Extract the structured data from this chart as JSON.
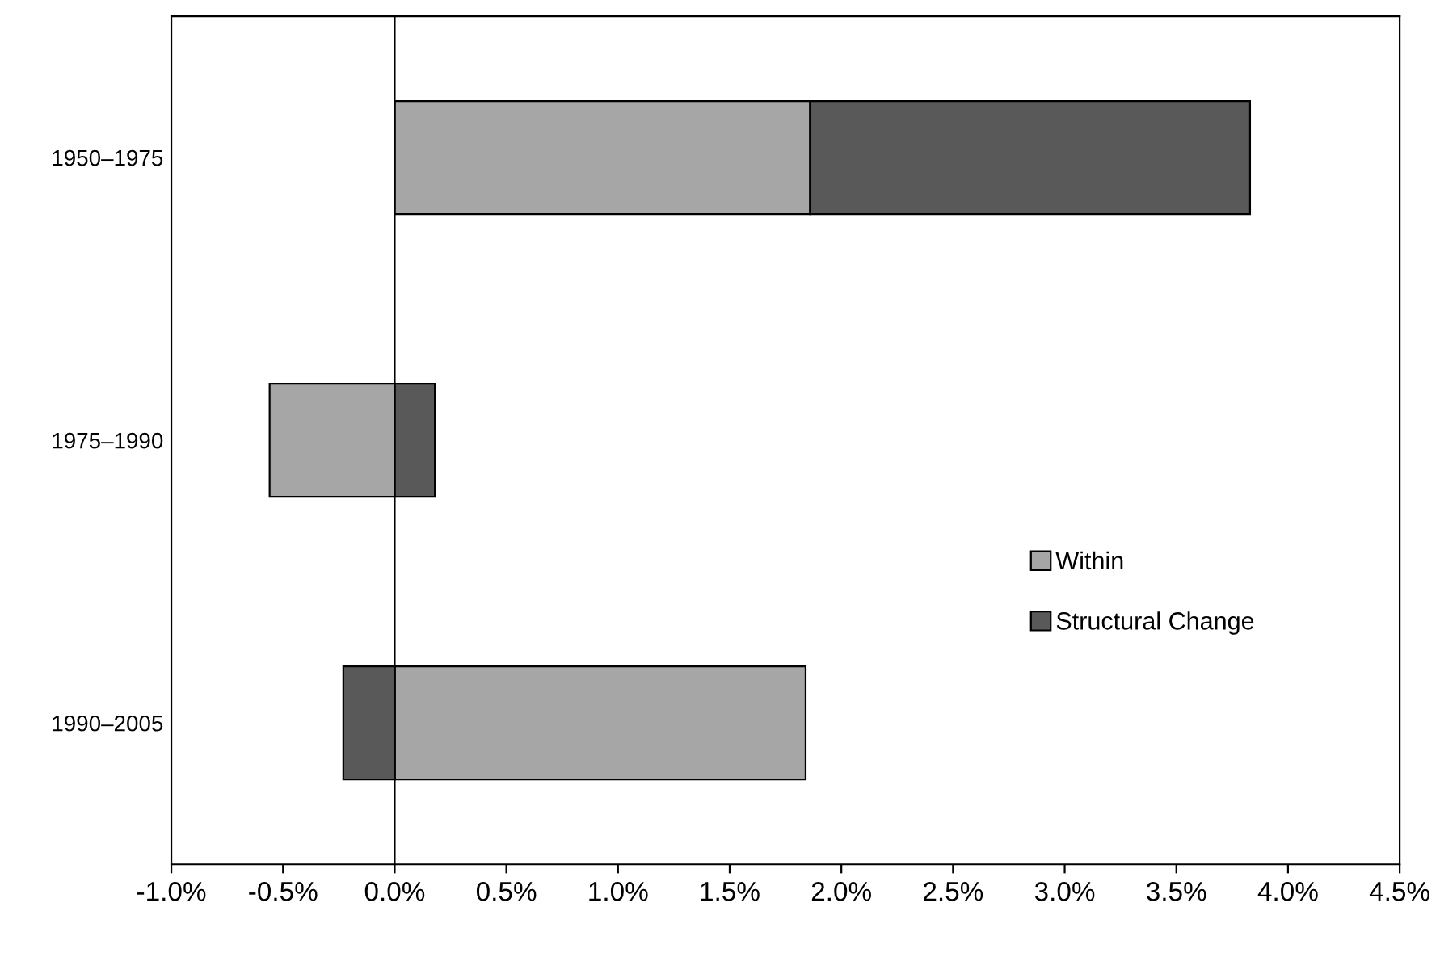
{
  "chart_data": {
    "type": "bar",
    "orientation": "horizontal",
    "stacked": true,
    "categories": [
      "1950–1975",
      "1975–1990",
      "1990–2005"
    ],
    "series": [
      {
        "name": "Within",
        "color": "#a6a6a6",
        "values": [
          1.86,
          -0.56,
          1.84
        ]
      },
      {
        "name": "Structural Change",
        "color": "#595959",
        "values": [
          1.97,
          0.18,
          -0.23
        ]
      }
    ],
    "xlim": [
      -1.0,
      4.5
    ],
    "xticks": [
      {
        "value": -1.0,
        "label": "-1.0%"
      },
      {
        "value": -0.5,
        "label": "-0.5%"
      },
      {
        "value": 0.0,
        "label": "0.0%"
      },
      {
        "value": 0.5,
        "label": "0.5%"
      },
      {
        "value": 1.0,
        "label": "1.0%"
      },
      {
        "value": 1.5,
        "label": "1.5%"
      },
      {
        "value": 2.0,
        "label": "2.0%"
      },
      {
        "value": 2.5,
        "label": "2.5%"
      },
      {
        "value": 3.0,
        "label": "3.0%"
      },
      {
        "value": 3.5,
        "label": "3.5%"
      },
      {
        "value": 4.0,
        "label": "4.0%"
      },
      {
        "value": 4.5,
        "label": "4.5%"
      }
    ],
    "ref_lines": [
      {
        "axis": "x",
        "value": 0.0,
        "color": "#000000"
      }
    ],
    "grid": false,
    "legend": "right"
  }
}
